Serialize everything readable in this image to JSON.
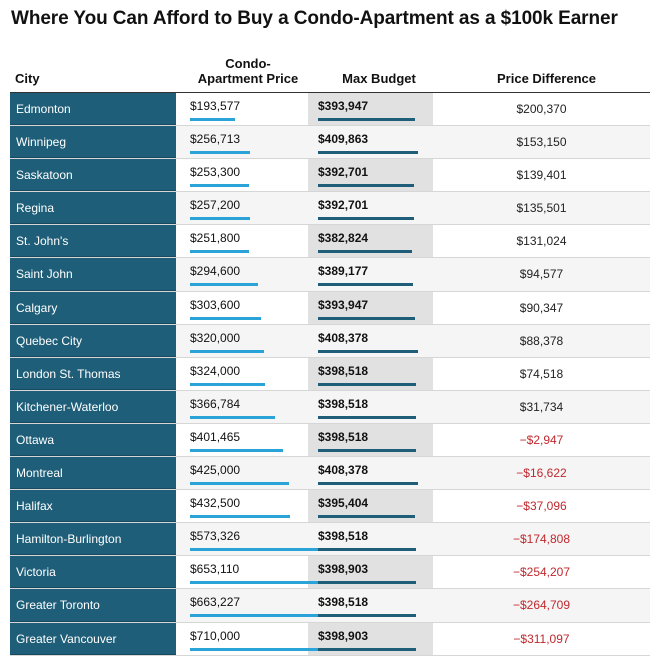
{
  "chart_data": {
    "type": "table",
    "title": "Where You Can Afford to Buy a Condo-Apartment as a $100k Earner",
    "columns": [
      "City",
      "Condo-\nApartment Price",
      "Max Budget",
      "Price Difference"
    ],
    "rows": [
      {
        "city": "Edmonton",
        "condo_price": 193577,
        "condo_label": "$193,577",
        "max_budget": 393947,
        "max_label": "$393,947",
        "diff": 200370,
        "diff_label": "$200,370"
      },
      {
        "city": "Winnipeg",
        "condo_price": 256713,
        "condo_label": "$256,713",
        "max_budget": 409863,
        "max_label": "$409,863",
        "diff": 153150,
        "diff_label": "$153,150"
      },
      {
        "city": "Saskatoon",
        "condo_price": 253300,
        "condo_label": "$253,300",
        "max_budget": 392701,
        "max_label": "$392,701",
        "diff": 139401,
        "diff_label": "$139,401"
      },
      {
        "city": "Regina",
        "condo_price": 257200,
        "condo_label": "$257,200",
        "max_budget": 392701,
        "max_label": "$392,701",
        "diff": 135501,
        "diff_label": "$135,501"
      },
      {
        "city": "St. John's",
        "condo_price": 251800,
        "condo_label": "$251,800",
        "max_budget": 382824,
        "max_label": "$382,824",
        "diff": 131024,
        "diff_label": "$131,024"
      },
      {
        "city": "Saint John",
        "condo_price": 294600,
        "condo_label": "$294,600",
        "max_budget": 389177,
        "max_label": "$389,177",
        "diff": 94577,
        "diff_label": "$94,577"
      },
      {
        "city": "Calgary",
        "condo_price": 303600,
        "condo_label": "$303,600",
        "max_budget": 393947,
        "max_label": "$393,947",
        "diff": 90347,
        "diff_label": "$90,347"
      },
      {
        "city": "Quebec City",
        "condo_price": 320000,
        "condo_label": "$320,000",
        "max_budget": 408378,
        "max_label": "$408,378",
        "diff": 88378,
        "diff_label": "$88,378"
      },
      {
        "city": "London St. Thomas",
        "condo_price": 324000,
        "condo_label": "$324,000",
        "max_budget": 398518,
        "max_label": "$398,518",
        "diff": 74518,
        "diff_label": "$74,518"
      },
      {
        "city": "Kitchener-Waterloo",
        "condo_price": 366784,
        "condo_label": "$366,784",
        "max_budget": 398518,
        "max_label": "$398,518",
        "diff": 31734,
        "diff_label": "$31,734"
      },
      {
        "city": "Ottawa",
        "condo_price": 401465,
        "condo_label": "$401,465",
        "max_budget": 398518,
        "max_label": "$398,518",
        "diff": -2947,
        "diff_label": "−$2,947"
      },
      {
        "city": "Montreal",
        "condo_price": 425000,
        "condo_label": "$425,000",
        "max_budget": 408378,
        "max_label": "$408,378",
        "diff": -16622,
        "diff_label": "−$16,622"
      },
      {
        "city": "Halifax",
        "condo_price": 432500,
        "condo_label": "$432,500",
        "max_budget": 395404,
        "max_label": "$395,404",
        "diff": -37096,
        "diff_label": "−$37,096"
      },
      {
        "city": "Hamilton-Burlington",
        "condo_price": 573326,
        "condo_label": "$573,326",
        "max_budget": 398518,
        "max_label": "$398,518",
        "diff": -174808,
        "diff_label": "−$174,808"
      },
      {
        "city": "Victoria",
        "condo_price": 653110,
        "condo_label": "$653,110",
        "max_budget": 398903,
        "max_label": "$398,903",
        "diff": -254207,
        "diff_label": "−$254,207"
      },
      {
        "city": "Greater Toronto",
        "condo_price": 663227,
        "condo_label": "$663,227",
        "max_budget": 398518,
        "max_label": "$398,518",
        "diff": -264709,
        "diff_label": "−$264,709"
      },
      {
        "city": "Greater Vancouver",
        "condo_price": 710000,
        "condo_label": "$710,000",
        "max_budget": 398903,
        "max_label": "$398,903",
        "diff": -311097,
        "diff_label": "−$311,097"
      }
    ]
  },
  "colors": {
    "city_column": "#1f5e78",
    "condo_bar": "#2aa3d8",
    "max_bar": "#1f5e78",
    "negative": "#c0282d",
    "max_column_bg": "#e1e1e1"
  }
}
